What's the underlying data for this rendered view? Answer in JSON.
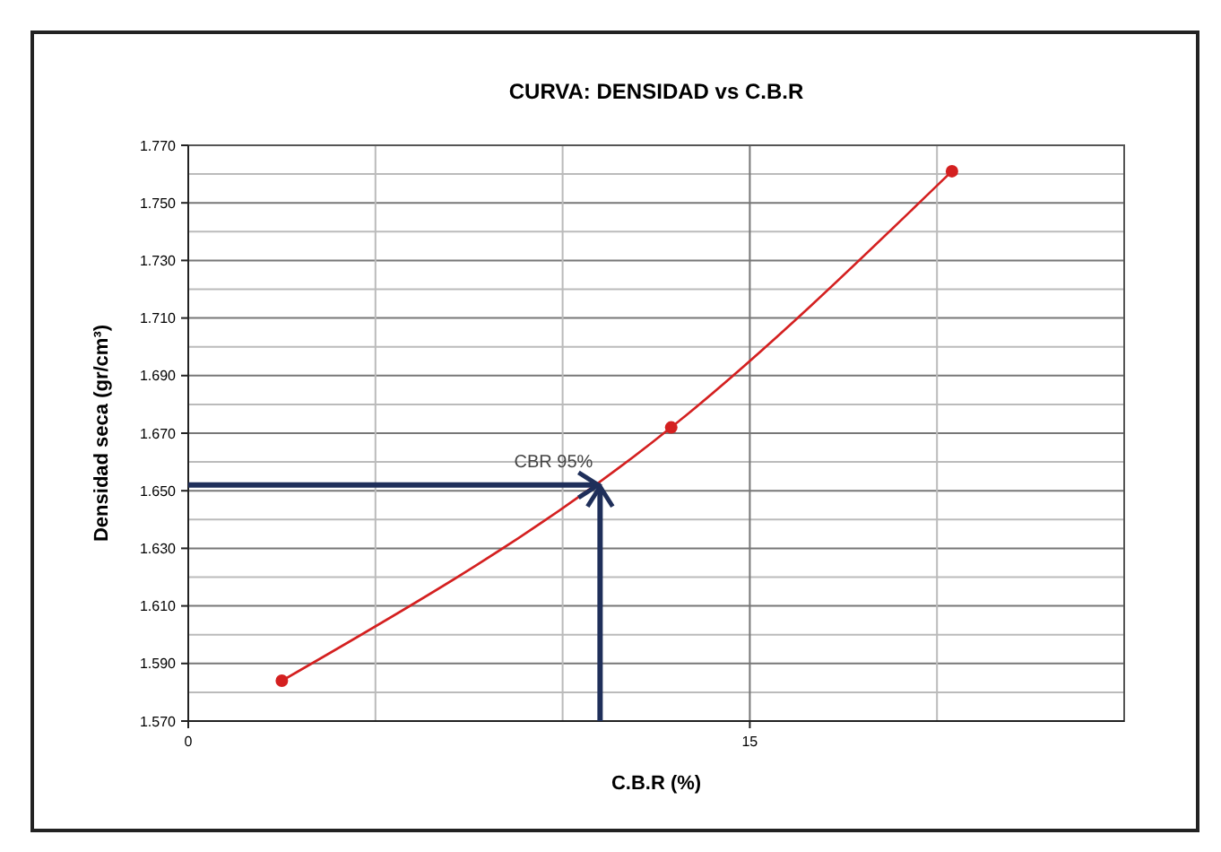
{
  "chart_data": {
    "type": "line",
    "title": "CURVA: DENSIDAD vs C.B.R",
    "xlabel": "C.B.R (%)",
    "ylabel": "Densidad seca (gr/cm³)",
    "x": [
      2.5,
      12.9,
      20.4
    ],
    "series": [
      {
        "color": "#d42020",
        "values": [
          1.584,
          1.672,
          1.761
        ]
      }
    ],
    "marker": "circle",
    "line_style": "solid",
    "grid": true,
    "xlim": [
      0,
      25
    ],
    "xticks": [
      0,
      {
        "value": 5,
        "label": null
      },
      {
        "value": 10,
        "label": null
      },
      15,
      {
        "value": 20,
        "label": null
      },
      {
        "value": 25,
        "label": null
      }
    ],
    "ylim": [
      1.57,
      1.77
    ],
    "yticks": [
      {
        "value": 1.57,
        "label": "1.570"
      },
      {
        "value": 1.58,
        "label": null
      },
      {
        "value": 1.59,
        "label": "1.590"
      },
      {
        "value": 1.6,
        "label": null
      },
      {
        "value": 1.61,
        "label": "1.610"
      },
      {
        "value": 1.62,
        "label": null
      },
      {
        "value": 1.63,
        "label": "1.630"
      },
      {
        "value": 1.64,
        "label": null
      },
      {
        "value": 1.65,
        "label": "1.650"
      },
      {
        "value": 1.66,
        "label": null
      },
      {
        "value": 1.67,
        "label": "1.670"
      },
      {
        "value": 1.68,
        "label": null
      },
      {
        "value": 1.69,
        "label": "1.690"
      },
      {
        "value": 1.7,
        "label": null
      },
      {
        "value": 1.71,
        "label": "1.710"
      },
      {
        "value": 1.72,
        "label": null
      },
      {
        "value": 1.73,
        "label": "1.730"
      },
      {
        "value": 1.74,
        "label": null
      },
      {
        "value": 1.75,
        "label": "1.750"
      },
      {
        "value": 1.76,
        "label": null
      },
      {
        "value": 1.77,
        "label": "1.770"
      }
    ],
    "annotations": [
      {
        "text": "CBR 95%",
        "x": 11,
        "y": 1.652
      }
    ]
  }
}
